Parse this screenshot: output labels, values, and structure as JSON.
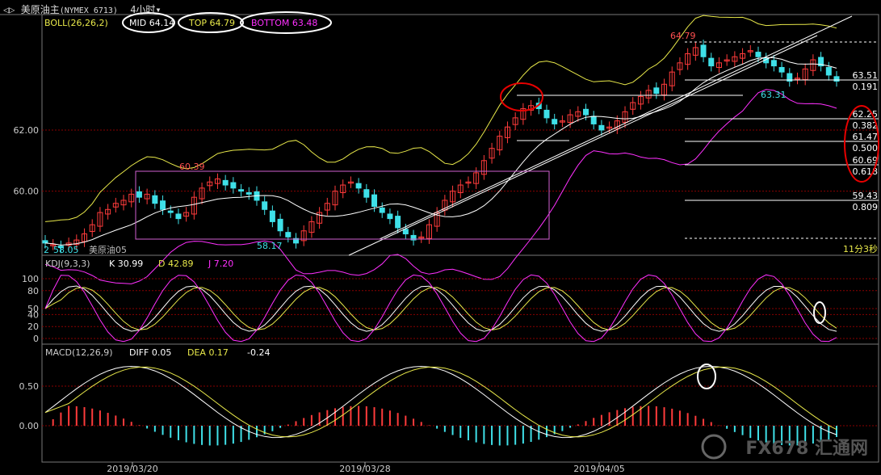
{
  "window": {
    "nav_icon": "back-forward-arrows-icon",
    "instrument": "美原油主",
    "code": "(NYMEX 6713)",
    "period": "4小时",
    "dropdown_icon": "chevron-down-icon"
  },
  "colors": {
    "up": "#ff3b3b",
    "down": "#3fe0e8",
    "mid": "#ffffff",
    "top": "#e8e84a",
    "bottom": "#ff30ff",
    "annotation_red": "#e80000",
    "annotation_white": "#ffffff",
    "fib_line": "#ffffff",
    "grid": "#8a0000",
    "axis_text": "#cccccc"
  },
  "boll": {
    "title": "BOLL(26,26,2)",
    "mid_label": "MID 64.14",
    "top_label": "TOP 64.79",
    "bottom_label": "BOTTOM 63.48",
    "price_labels": {
      "high": "64.79",
      "low_recent": "63.31",
      "left_low": "58.17",
      "left_high": "60.39",
      "left_edge": "58.05",
      "left_edge_prefix": "2",
      "inst_small": "美原油05"
    },
    "y_ticks": [
      "62.00",
      "60.00"
    ],
    "countdown": "11分3秒"
  },
  "fib_levels": [
    {
      "price": "63.51",
      "ratio": "0.191"
    },
    {
      "price": "62.25",
      "ratio": "0.382"
    },
    {
      "price": "61.47",
      "ratio": "0.500"
    },
    {
      "price": "60.69",
      "ratio": "0.618"
    },
    {
      "price": "59.43",
      "ratio": "0.809"
    }
  ],
  "kdj": {
    "title": "KDJ(9,3,3)",
    "k_label": "K 30.99",
    "d_label": "D 42.89",
    "j_label": "J 7.20",
    "y_ticks": [
      "100",
      "80",
      "50",
      "40",
      "20",
      "0"
    ]
  },
  "macd": {
    "title": "MACD(12,26,9)",
    "diff_label": "DIFF 0.05",
    "dea_label": "DEA 0.17",
    "hist_label": "-0.24",
    "y_ticks": [
      "0.50",
      "0.00"
    ]
  },
  "x_axis": [
    "2019/03/20",
    "2019/03/28",
    "2019/04/05"
  ],
  "watermark": "FX678 汇通网",
  "chart_data": {
    "type": "candlestick",
    "panels": [
      "BOLL",
      "KDJ",
      "MACD"
    ],
    "price_range": [
      57.9,
      65.2
    ],
    "close_series": [
      58.3,
      58.25,
      58.15,
      58.3,
      58.4,
      58.6,
      58.9,
      59.3,
      59.4,
      59.6,
      59.7,
      59.9,
      59.8,
      59.9,
      59.6,
      59.4,
      59.3,
      59.1,
      59.3,
      59.8,
      60.1,
      60.3,
      60.4,
      60.2,
      60.1,
      60.0,
      59.9,
      59.7,
      59.4,
      59.0,
      58.7,
      58.5,
      58.3,
      58.7,
      59.0,
      59.3,
      59.6,
      60.0,
      60.2,
      60.3,
      60.1,
      59.8,
      59.5,
      59.3,
      59.1,
      58.8,
      58.6,
      58.4,
      58.5,
      58.9,
      59.3,
      59.7,
      60.0,
      60.2,
      60.3,
      60.6,
      61.0,
      61.4,
      61.8,
      62.1,
      62.4,
      62.7,
      62.8,
      62.7,
      62.4,
      62.2,
      62.3,
      62.5,
      62.6,
      62.5,
      62.2,
      62.0,
      62.1,
      62.3,
      62.6,
      62.9,
      63.1,
      63.3,
      63.2,
      63.5,
      63.9,
      64.2,
      64.5,
      64.7,
      64.4,
      64.1,
      64.2,
      64.3,
      64.4,
      64.5,
      64.6,
      64.4,
      64.2,
      64.1,
      63.9,
      63.6,
      63.7,
      64.0,
      64.3,
      64.1,
      63.8,
      63.6
    ]
  }
}
